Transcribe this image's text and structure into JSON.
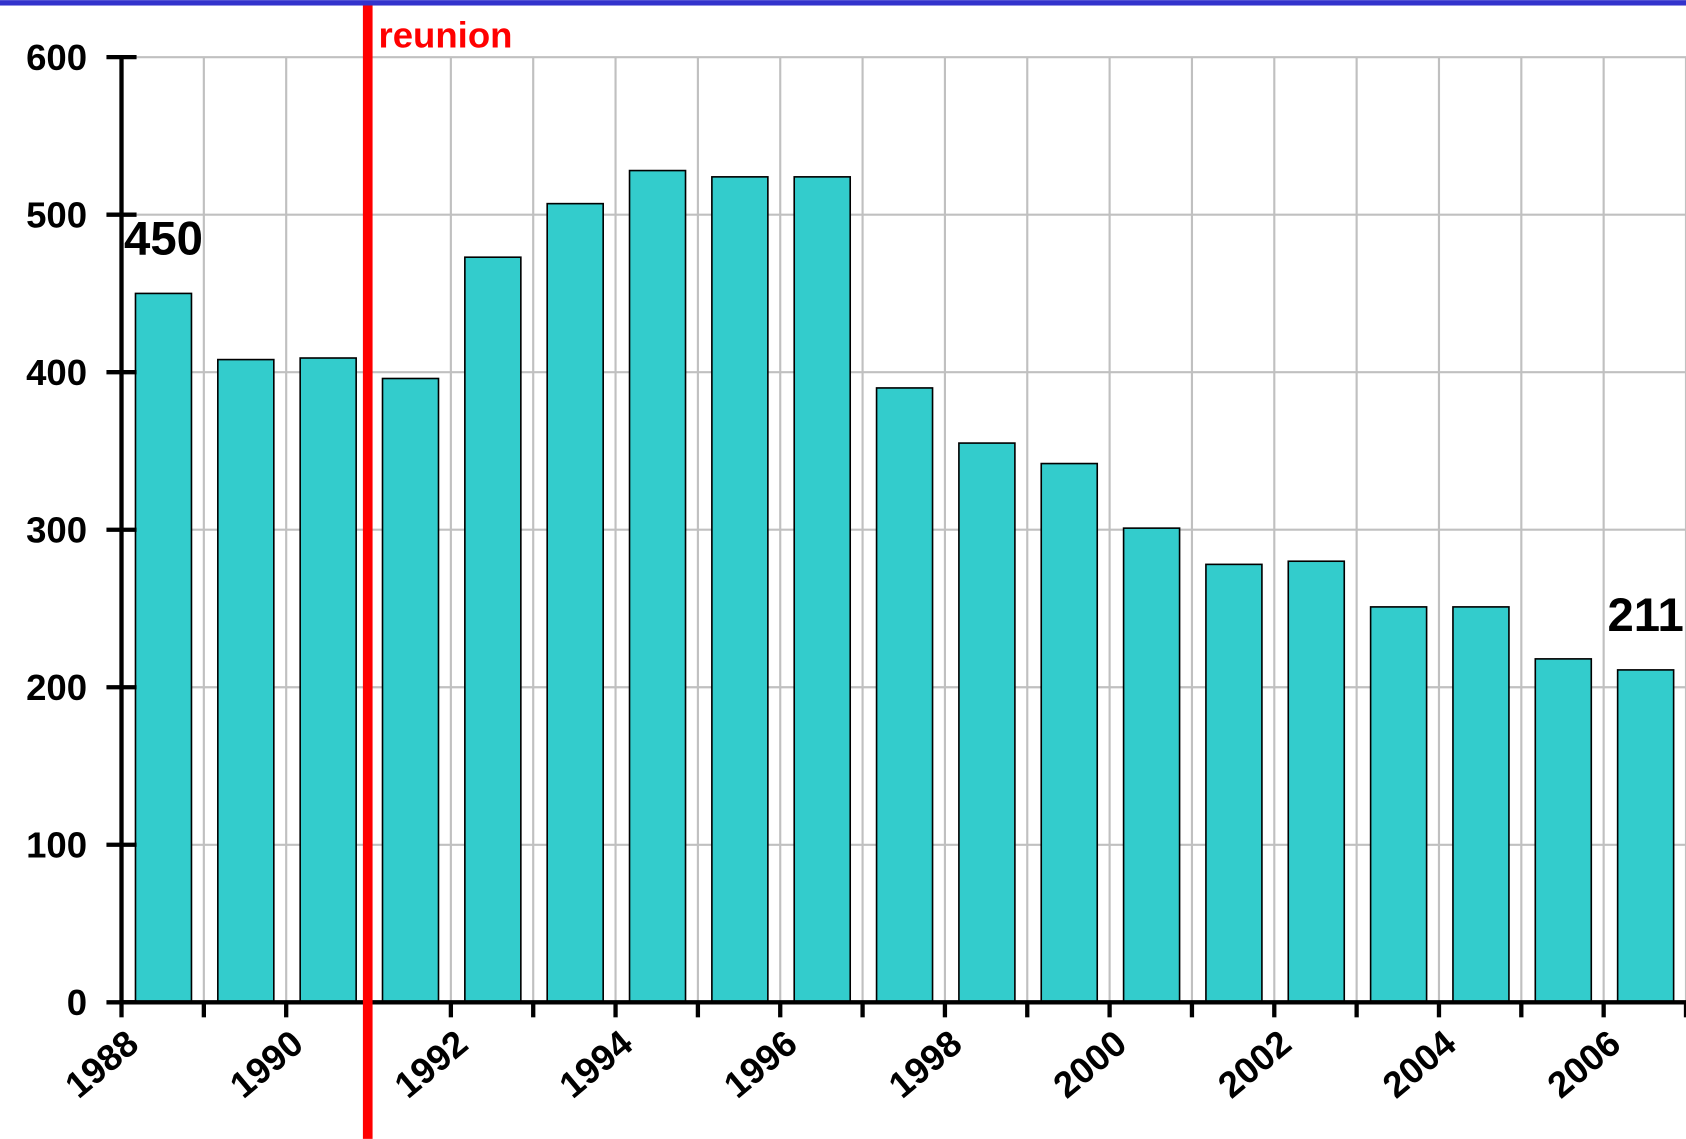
{
  "chart_data": {
    "type": "bar",
    "categories": [
      "1988",
      null,
      "1990",
      null,
      "1992",
      null,
      "1994",
      null,
      "1996",
      null,
      "1998",
      null,
      "2000",
      null,
      "2002",
      null,
      "2004",
      null,
      "2006"
    ],
    "values": [
      450,
      408,
      409,
      396,
      473,
      507,
      528,
      524,
      524,
      390,
      355,
      342,
      301,
      278,
      280,
      251,
      251,
      218,
      211
    ],
    "value_labels": [
      "450",
      null,
      null,
      null,
      null,
      null,
      null,
      null,
      null,
      null,
      null,
      null,
      null,
      null,
      null,
      null,
      null,
      null,
      "211"
    ],
    "color": "#33cccc",
    "ylim": [
      0,
      600
    ],
    "yticks": [
      0,
      100,
      200,
      300,
      400,
      500,
      600
    ],
    "grid": true,
    "annotation": "reunion"
  }
}
